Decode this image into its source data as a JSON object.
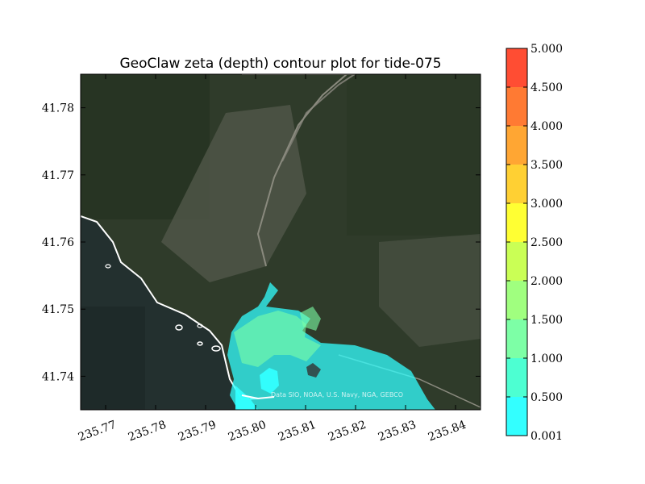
{
  "chart_data": {
    "type": "heatmap",
    "title": "GeoClaw zeta (depth) contour plot for tide-075",
    "xlabel": "",
    "ylabel": "",
    "xlim": [
      235.765,
      235.845
    ],
    "ylim": [
      41.735,
      41.785
    ],
    "x_ticks": [
      "235.77",
      "235.78",
      "235.79",
      "235.80",
      "235.81",
      "235.82",
      "235.83",
      "235.84"
    ],
    "y_ticks": [
      "41.74",
      "41.75",
      "41.76",
      "41.77",
      "41.78"
    ],
    "background": "satellite imagery",
    "attribution": "Data SIO, NOAA, U.S. Navy, NGA, GEBCO",
    "colorbar": {
      "levels": [
        "0.001",
        "0.500",
        "1.000",
        "1.500",
        "2.000",
        "2.500",
        "3.000",
        "3.500",
        "4.000",
        "4.500",
        "5.000"
      ],
      "colors": [
        "#33ffff",
        "#4dffd2",
        "#7dffa6",
        "#a0ff7f",
        "#caff55",
        "#ffff33",
        "#ffd033",
        "#ffa633",
        "#ff7a33",
        "#ff4d33"
      ]
    }
  }
}
